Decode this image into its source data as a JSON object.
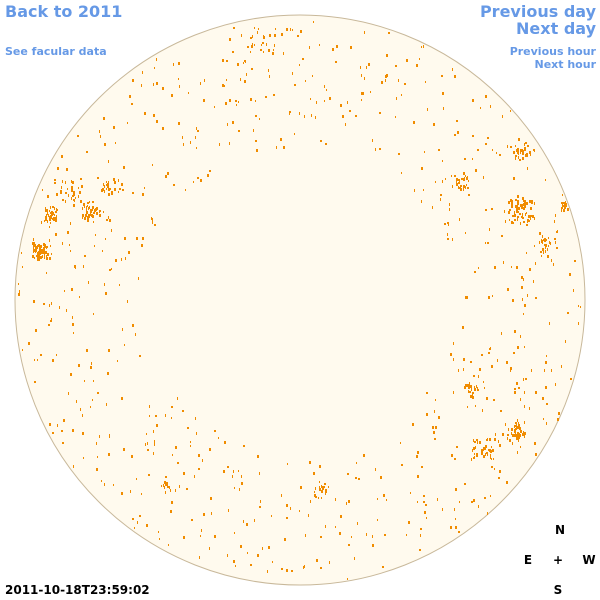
{
  "nav": {
    "back_label": "Back to 2011",
    "facular_label": "See facular data",
    "prev_day_label": "Previous day",
    "next_day_label": "Next day",
    "prev_hour_label": "Previous hour",
    "next_hour_label": "Next hour"
  },
  "compass": {
    "north": "N",
    "east": "E",
    "center": "+",
    "west": "W",
    "south": "S"
  },
  "timestamp": "2011-10-18T23:59:02",
  "colors": {
    "link": "#6699e6",
    "disk_fill": "#fffaee",
    "disk_edge": "#c8b89a",
    "feature": "#f08c00"
  }
}
